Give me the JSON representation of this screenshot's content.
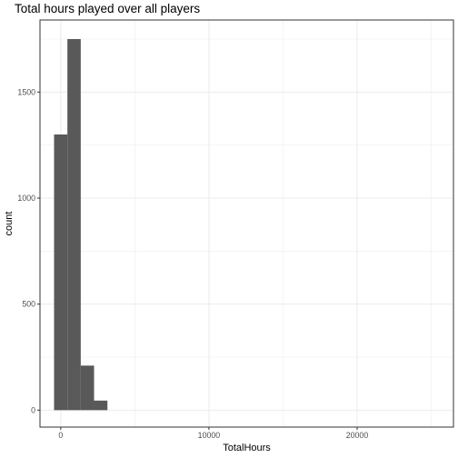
{
  "chart_data": {
    "type": "bar",
    "title": "Total hours played over all players",
    "xlabel": "TotalHours",
    "ylabel": "count",
    "xlim": [
      -1400,
      26500
    ],
    "ylim": [
      -80,
      1840
    ],
    "x_ticks": [
      0,
      10000,
      20000
    ],
    "x_tick_labels": [
      "0",
      "10000",
      "20000"
    ],
    "y_ticks": [
      0,
      500,
      1000,
      1500
    ],
    "y_tick_labels": [
      "0",
      "500",
      "1000",
      "1500"
    ],
    "bin_width": 900,
    "bins": [
      {
        "x_center": 0,
        "count": 1300
      },
      {
        "x_center": 900,
        "count": 1750
      },
      {
        "x_center": 1800,
        "count": 210
      },
      {
        "x_center": 2700,
        "count": 45
      }
    ],
    "bar_color": "#595959",
    "grid": true,
    "legend": "none",
    "theme": "bw"
  }
}
